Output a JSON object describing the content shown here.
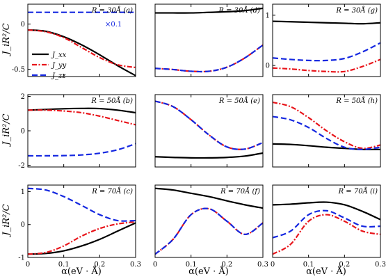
{
  "figure": {
    "ylabel": "J_iR²/C",
    "xlabel": "α(eV · Å)",
    "legend": [
      {
        "label": "J_xx",
        "color": "#000000",
        "dash": "solid"
      },
      {
        "label": "J_yy",
        "color": "#e8141a",
        "dash": "dashdot"
      },
      {
        "label": "J_zz",
        "color": "#1427e0",
        "dash": "dashed"
      }
    ],
    "scale_note": "×0.1"
  },
  "chart_data": [
    {
      "id": "a",
      "type": "line",
      "title": "R = 30Å (a)",
      "xlim": [
        0,
        0.3
      ],
      "ylim": [
        -0.58,
        0.22
      ],
      "yticks": [
        {
          "v": 0,
          "t": "0"
        },
        {
          "v": -0.5,
          "t": "-0.5"
        }
      ],
      "xticks": [
        {
          "v": 0,
          "t": ""
        },
        {
          "v": 0.1,
          "t": ""
        },
        {
          "v": 0.2,
          "t": ""
        },
        {
          "v": 0.3,
          "t": ""
        }
      ],
      "x": [
        0,
        0.05,
        0.1,
        0.15,
        0.2,
        0.25,
        0.3
      ],
      "series": [
        {
          "name": "J_xx",
          "color": "#000000",
          "dash": "solid",
          "values": [
            -0.065,
            -0.08,
            -0.14,
            -0.23,
            -0.34,
            -0.46,
            -0.57
          ]
        },
        {
          "name": "J_yy",
          "color": "#e8141a",
          "dash": "dashdot",
          "values": [
            -0.065,
            -0.085,
            -0.15,
            -0.26,
            -0.37,
            -0.45,
            -0.48
          ]
        },
        {
          "name": "J_zz",
          "color": "#1427e0",
          "dash": "dashed",
          "values": [
            0.13,
            0.13,
            0.13,
            0.13,
            0.13,
            0.13,
            0.13
          ]
        }
      ]
    },
    {
      "id": "d",
      "type": "line",
      "title": "R = 30Å (d)",
      "xlim": [
        0,
        0.3
      ],
      "ylim": [
        -0.62,
        0.62
      ],
      "yticks": [],
      "xticks": [
        {
          "v": 0,
          "t": ""
        },
        {
          "v": 0.1,
          "t": ""
        },
        {
          "v": 0.2,
          "t": ""
        },
        {
          "v": 0.3,
          "t": ""
        }
      ],
      "x": [
        0,
        0.05,
        0.1,
        0.15,
        0.2,
        0.25,
        0.3
      ],
      "series": [
        {
          "name": "J_xx",
          "color": "#000000",
          "dash": "solid",
          "values": [
            0.47,
            0.47,
            0.47,
            0.48,
            0.49,
            0.51,
            0.55
          ]
        },
        {
          "name": "J_yy",
          "color": "#e8141a",
          "dash": "dashdot",
          "values": [
            -0.48,
            -0.5,
            -0.53,
            -0.53,
            -0.46,
            -0.3,
            -0.08
          ]
        },
        {
          "name": "J_zz",
          "color": "#1427e0",
          "dash": "dashed",
          "values": [
            -0.48,
            -0.5,
            -0.53,
            -0.53,
            -0.46,
            -0.3,
            -0.08
          ]
        }
      ]
    },
    {
      "id": "g",
      "type": "line",
      "title": "R = 30Å (g)",
      "xlim": [
        0,
        0.3
      ],
      "ylim": [
        -0.22,
        1.22
      ],
      "yticks": [
        {
          "v": 0,
          "t": "0"
        },
        {
          "v": 1,
          "t": "1"
        }
      ],
      "xticks": [
        {
          "v": 0,
          "t": ""
        },
        {
          "v": 0.1,
          "t": ""
        },
        {
          "v": 0.2,
          "t": ""
        },
        {
          "v": 0.3,
          "t": ""
        }
      ],
      "x": [
        0,
        0.05,
        0.1,
        0.15,
        0.2,
        0.25,
        0.3
      ],
      "series": [
        {
          "name": "J_xx",
          "color": "#000000",
          "dash": "solid",
          "values": [
            0.88,
            0.87,
            0.86,
            0.85,
            0.84,
            0.83,
            0.85
          ]
        },
        {
          "name": "J_yy",
          "color": "#e8141a",
          "dash": "dashdot",
          "values": [
            -0.05,
            -0.07,
            -0.1,
            -0.12,
            -0.12,
            -0.02,
            0.12
          ]
        },
        {
          "name": "J_zz",
          "color": "#1427e0",
          "dash": "dashed",
          "values": [
            0.15,
            0.12,
            0.1,
            0.1,
            0.14,
            0.27,
            0.45
          ]
        }
      ]
    },
    {
      "id": "b",
      "type": "line",
      "title": "R = 50Å (b)",
      "xlim": [
        0,
        0.3
      ],
      "ylim": [
        -2.1,
        2.1
      ],
      "yticks": [
        {
          "v": 2,
          "t": "2"
        },
        {
          "v": 0,
          "t": "0"
        },
        {
          "v": -2,
          "t": "-2"
        }
      ],
      "xticks": [
        {
          "v": 0,
          "t": ""
        },
        {
          "v": 0.1,
          "t": ""
        },
        {
          "v": 0.2,
          "t": ""
        },
        {
          "v": 0.3,
          "t": ""
        }
      ],
      "x": [
        0,
        0.05,
        0.1,
        0.15,
        0.2,
        0.25,
        0.3
      ],
      "series": [
        {
          "name": "J_xx",
          "color": "#000000",
          "dash": "solid",
          "values": [
            1.2,
            1.24,
            1.28,
            1.3,
            1.29,
            1.2,
            1.05
          ]
        },
        {
          "name": "J_yy",
          "color": "#e8141a",
          "dash": "dashdot",
          "values": [
            1.2,
            1.2,
            1.15,
            1.05,
            0.85,
            0.6,
            0.35
          ]
        },
        {
          "name": "J_zz",
          "color": "#1427e0",
          "dash": "dashed",
          "values": [
            -1.45,
            -1.45,
            -1.44,
            -1.4,
            -1.3,
            -1.1,
            -0.75
          ]
        }
      ]
    },
    {
      "id": "e",
      "type": "line",
      "title": "R = 50Å (e)",
      "xlim": [
        0,
        0.3
      ],
      "ylim": [
        -1.82,
        1.5
      ],
      "yticks": [],
      "xticks": [
        {
          "v": 0,
          "t": ""
        },
        {
          "v": 0.1,
          "t": ""
        },
        {
          "v": 0.2,
          "t": ""
        },
        {
          "v": 0.3,
          "t": ""
        }
      ],
      "x": [
        0,
        0.05,
        0.1,
        0.15,
        0.2,
        0.25,
        0.3
      ],
      "series": [
        {
          "name": "J_xx",
          "color": "#000000",
          "dash": "solid",
          "values": [
            -1.35,
            -1.38,
            -1.4,
            -1.4,
            -1.38,
            -1.32,
            -1.18
          ]
        },
        {
          "name": "J_yy",
          "color": "#e8141a",
          "dash": "dashdot",
          "values": [
            1.2,
            0.95,
            0.35,
            -0.35,
            -0.9,
            -1.0,
            -0.7
          ]
        },
        {
          "name": "J_zz",
          "color": "#1427e0",
          "dash": "dashed",
          "values": [
            1.2,
            0.95,
            0.35,
            -0.35,
            -0.9,
            -1.0,
            -0.7
          ]
        }
      ]
    },
    {
      "id": "h",
      "type": "line",
      "title": "R = 50Å (h)",
      "xlim": [
        0,
        0.3
      ],
      "ylim": [
        -1.75,
        1.55
      ],
      "yticks": [],
      "xticks": [
        {
          "v": 0,
          "t": ""
        },
        {
          "v": 0.1,
          "t": ""
        },
        {
          "v": 0.2,
          "t": ""
        },
        {
          "v": 0.3,
          "t": ""
        }
      ],
      "x": [
        0,
        0.05,
        0.1,
        0.15,
        0.2,
        0.25,
        0.3
      ],
      "series": [
        {
          "name": "J_xx",
          "color": "#000000",
          "dash": "solid",
          "values": [
            -0.7,
            -0.72,
            -0.78,
            -0.85,
            -0.9,
            -0.95,
            -0.95
          ]
        },
        {
          "name": "J_yy",
          "color": "#e8141a",
          "dash": "dashdot",
          "values": [
            1.2,
            1.0,
            0.5,
            -0.1,
            -0.6,
            -0.9,
            -0.75
          ]
        },
        {
          "name": "J_zz",
          "color": "#1427e0",
          "dash": "dashed",
          "values": [
            0.55,
            0.4,
            0.05,
            -0.45,
            -0.85,
            -0.95,
            -0.85
          ]
        }
      ]
    },
    {
      "id": "c",
      "type": "line",
      "title": "R = 70Å (c)",
      "xlim": [
        0,
        0.3
      ],
      "ylim": [
        -1,
        1.2
      ],
      "yticks": [
        {
          "v": 1,
          "t": "1"
        },
        {
          "v": 0,
          "t": "0"
        },
        {
          "v": -1,
          "t": "-1"
        }
      ],
      "xticks": [
        {
          "v": 0,
          "t": "0"
        },
        {
          "v": 0.1,
          "t": "0.1"
        },
        {
          "v": 0.2,
          "t": "0.2"
        },
        {
          "v": 0.3,
          "t": "0.3"
        }
      ],
      "x": [
        0,
        0.05,
        0.1,
        0.15,
        0.2,
        0.25,
        0.3
      ],
      "series": [
        {
          "name": "J_xx",
          "color": "#000000",
          "dash": "solid",
          "values": [
            -0.9,
            -0.88,
            -0.8,
            -0.65,
            -0.45,
            -0.2,
            0.05
          ]
        },
        {
          "name": "J_yy",
          "color": "#e8141a",
          "dash": "dashdot",
          "values": [
            -0.9,
            -0.85,
            -0.65,
            -0.35,
            -0.12,
            0.02,
            0.08
          ]
        },
        {
          "name": "J_zz",
          "color": "#1427e0",
          "dash": "dashed",
          "values": [
            1.1,
            1.05,
            0.85,
            0.58,
            0.3,
            0.12,
            0.12
          ]
        }
      ]
    },
    {
      "id": "f",
      "type": "line",
      "title": "R = 70Å (f)",
      "xlim": [
        0,
        0.3
      ],
      "ylim": [
        -1,
        1.2
      ],
      "yticks": [],
      "xticks": [
        {
          "v": 0,
          "t": "0"
        },
        {
          "v": 0.1,
          "t": "0.1"
        },
        {
          "v": 0.2,
          "t": "0.2"
        },
        {
          "v": 0.3,
          "t": "0.3"
        }
      ],
      "x": [
        0,
        0.05,
        0.1,
        0.15,
        0.2,
        0.25,
        0.3
      ],
      "series": [
        {
          "name": "J_xx",
          "color": "#000000",
          "dash": "solid",
          "values": [
            1.1,
            1.05,
            0.95,
            0.85,
            0.72,
            0.6,
            0.5
          ]
        },
        {
          "name": "J_yy",
          "color": "#e8141a",
          "dash": "dashdot",
          "values": [
            -0.9,
            -0.45,
            0.3,
            0.48,
            0.1,
            -0.3,
            0.05
          ]
        },
        {
          "name": "J_zz",
          "color": "#1427e0",
          "dash": "dashed",
          "values": [
            -0.9,
            -0.45,
            0.3,
            0.48,
            0.1,
            -0.3,
            0.05
          ]
        }
      ]
    },
    {
      "id": "i",
      "type": "line",
      "title": "R = 70Å (i)",
      "xlim": [
        0,
        0.3
      ],
      "ylim": [
        -1,
        1.2
      ],
      "yticks": [],
      "xticks": [
        {
          "v": 0,
          "t": "0"
        },
        {
          "v": 0.1,
          "t": "0.1"
        },
        {
          "v": 0.2,
          "t": "0.2"
        },
        {
          "v": 0.3,
          "t": "0.3"
        }
      ],
      "x": [
        0,
        0.05,
        0.1,
        0.15,
        0.2,
        0.25,
        0.3
      ],
      "series": [
        {
          "name": "J_xx",
          "color": "#000000",
          "dash": "solid",
          "values": [
            0.6,
            0.62,
            0.66,
            0.68,
            0.6,
            0.4,
            0.15
          ]
        },
        {
          "name": "J_yy",
          "color": "#e8141a",
          "dash": "dashdot",
          "values": [
            -0.9,
            -0.6,
            0.1,
            0.3,
            0.1,
            -0.2,
            -0.3
          ]
        },
        {
          "name": "J_zz",
          "color": "#1427e0",
          "dash": "dashed",
          "values": [
            -0.4,
            -0.2,
            0.3,
            0.42,
            0.2,
            -0.05,
            -0.05
          ]
        }
      ]
    }
  ]
}
